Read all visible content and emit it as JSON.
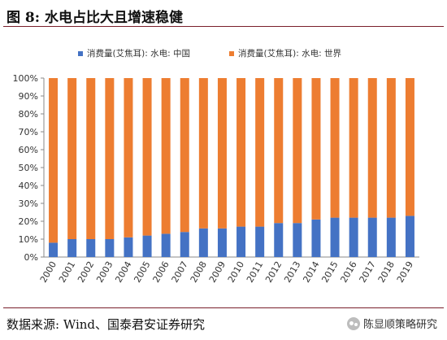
{
  "header": {
    "title": "图 8:  水电占比大且增速稳健"
  },
  "footer": {
    "source": "数据来源:  Wind、国泰君安证券研究",
    "watermark": "陈显顺策略研究"
  },
  "colors": {
    "china": "#4472c4",
    "world": "#ed7d31"
  },
  "chart_data": {
    "type": "bar",
    "stacked": true,
    "percent": true,
    "categories": [
      "2000",
      "2001",
      "2002",
      "2003",
      "2004",
      "2005",
      "2006",
      "2007",
      "2008",
      "2009",
      "2010",
      "2011",
      "2012",
      "2013",
      "2014",
      "2015",
      "2016",
      "2017",
      "2018",
      "2019"
    ],
    "series": [
      {
        "name": "消费量(艾焦耳): 水电: 中国",
        "values": [
          8,
          10,
          10,
          10,
          11,
          12,
          13,
          14,
          16,
          16,
          17,
          17,
          19,
          19,
          21,
          22,
          22,
          22,
          22,
          23
        ]
      },
      {
        "name": "消费量(艾焦耳): 水电: 世界",
        "values": [
          92,
          90,
          90,
          90,
          89,
          88,
          87,
          86,
          84,
          84,
          83,
          83,
          81,
          81,
          79,
          78,
          78,
          78,
          78,
          77
        ]
      }
    ],
    "yticks": [
      "0%",
      "10%",
      "20%",
      "30%",
      "40%",
      "50%",
      "60%",
      "70%",
      "80%",
      "90%",
      "100%"
    ],
    "ylim": [
      0,
      100
    ],
    "legend": "top",
    "grid": false
  }
}
